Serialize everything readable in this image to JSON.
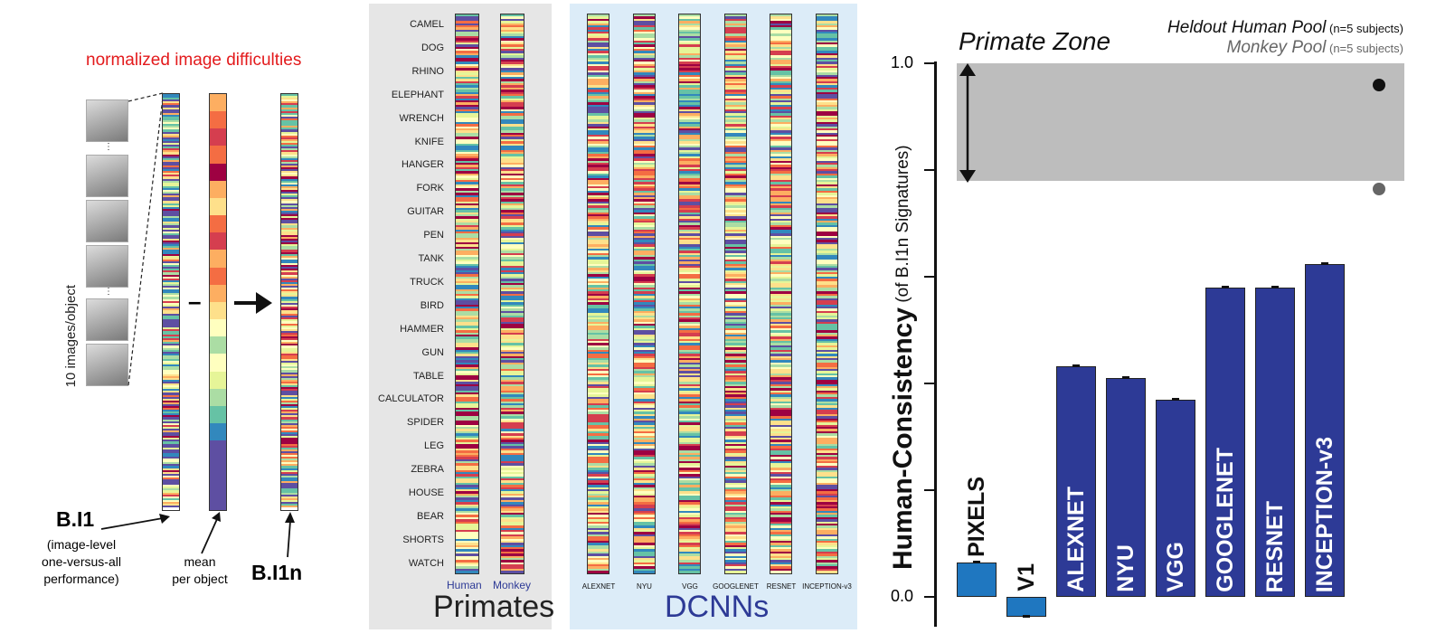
{
  "left": {
    "title": "normalized image difficulties",
    "vertical_label": "10 images/object",
    "minus": "–",
    "bi1": "B.I1",
    "bi1_desc": [
      "(image-level",
      "one-versus-all",
      "performance)"
    ],
    "mean_label": [
      "mean",
      "per object"
    ],
    "bi1n": "B.I1n",
    "ellipsis": "⋮"
  },
  "objects": [
    "CAMEL",
    "DOG",
    "RHINO",
    "ELEPHANT",
    "WRENCH",
    "KNIFE",
    "HANGER",
    "FORK",
    "GUITAR",
    "PEN",
    "TANK",
    "TRUCK",
    "BIRD",
    "HAMMER",
    "GUN",
    "TABLE",
    "CALCULATOR",
    "SPIDER",
    "LEG",
    "ZEBRA",
    "HOUSE",
    "BEAR",
    "SHORTS",
    "WATCH"
  ],
  "primates": {
    "title": "Primates",
    "labels": [
      "Human",
      "Monkey"
    ]
  },
  "dcnns": {
    "title": "DCNNs",
    "labels": [
      "ALEXNET",
      "NYU",
      "VGG",
      "GOOGLENET",
      "RESNET",
      "INCEPTION-v3"
    ]
  },
  "colors": {
    "spectral": [
      "#5e4fa2",
      "#3288bd",
      "#66c2a5",
      "#abdda4",
      "#e6f598",
      "#ffffbf",
      "#fee08b",
      "#fdae61",
      "#f46d43",
      "#d53e4f",
      "#9e0142"
    ],
    "primate_zone": "#bdbdbd",
    "bar_primary": "#2d3a96",
    "bar_secondary": "#1f77c0",
    "red_title": "#e31a1c",
    "primates_label": "#2d3a96",
    "dcnn_title": "#2d3a96"
  },
  "chart_data": {
    "type": "bar",
    "ylabel": "Human-Consistency",
    "ylabel_sub": "(of B.I1n Signatures)",
    "yticks": [
      "1.0",
      "0.0"
    ],
    "ylim": [
      -0.05,
      1.0
    ],
    "primate_zone_label": "Primate Zone",
    "primate_zone": [
      0.78,
      1.0
    ],
    "references": [
      {
        "name": "Heldout Human Pool",
        "note": "(n=5 subjects)",
        "value": 0.96,
        "color": "#111111"
      },
      {
        "name": "Monkey Pool",
        "note": "(n=5 subjects)",
        "value": 0.765,
        "color": "#666666"
      }
    ],
    "categories": [
      "PIXELS",
      "V1",
      "ALEXNET",
      "NYU",
      "VGG",
      "GOOGLENET",
      "RESNET",
      "INCEPTION-v3"
    ],
    "values": [
      0.065,
      -0.037,
      0.432,
      0.41,
      0.37,
      0.58,
      0.58,
      0.623
    ],
    "bar_colors": [
      "#1f77c0",
      "#1f77c0",
      "#2d3a96",
      "#2d3a96",
      "#2d3a96",
      "#2d3a96",
      "#2d3a96",
      "#2d3a96"
    ]
  }
}
